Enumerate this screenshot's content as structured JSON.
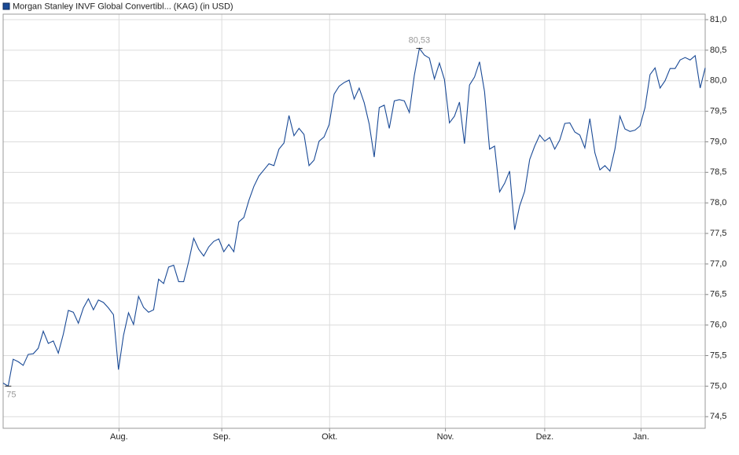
{
  "chart_data": {
    "type": "line",
    "series": [
      {
        "name": "Morgan Stanley INVF Global Convertibl... (KAG) (in USD)",
        "color": "#1a4a96",
        "values": [
          75.05,
          75.0,
          75.44,
          75.4,
          75.34,
          75.52,
          75.53,
          75.62,
          75.9,
          75.7,
          75.74,
          75.54,
          75.85,
          76.24,
          76.21,
          76.03,
          76.28,
          76.43,
          76.25,
          76.41,
          76.37,
          76.28,
          76.17,
          75.27,
          75.83,
          76.2,
          76.01,
          76.47,
          76.29,
          76.21,
          76.25,
          76.75,
          76.68,
          76.95,
          76.98,
          76.71,
          76.71,
          77.04,
          77.42,
          77.24,
          77.13,
          77.28,
          77.37,
          77.41,
          77.2,
          77.32,
          77.2,
          77.69,
          77.76,
          78.04,
          78.27,
          78.44,
          78.54,
          78.64,
          78.61,
          78.88,
          78.98,
          79.43,
          79.1,
          79.22,
          79.12,
          78.61,
          78.7,
          79.01,
          79.08,
          79.28,
          79.78,
          79.91,
          79.97,
          80.01,
          79.7,
          79.88,
          79.64,
          79.29,
          78.75,
          79.56,
          79.6,
          79.22,
          79.67,
          79.69,
          79.67,
          79.48,
          80.09,
          80.53,
          80.42,
          80.37,
          80.03,
          80.29,
          80.02,
          79.31,
          79.42,
          79.65,
          78.97,
          79.93,
          80.06,
          80.31,
          79.82,
          78.88,
          78.93,
          78.18,
          78.32,
          78.52,
          77.56,
          77.95,
          78.19,
          78.71,
          78.93,
          79.11,
          79.01,
          79.07,
          78.88,
          79.03,
          79.3,
          79.31,
          79.16,
          79.11,
          78.9,
          79.38,
          78.82,
          78.54,
          78.61,
          78.52,
          78.88,
          79.42,
          79.21,
          79.17,
          79.19,
          79.26,
          79.56,
          80.1,
          80.21,
          79.88,
          80.0,
          80.2,
          80.2,
          80.34,
          80.38,
          80.34,
          80.41,
          79.88,
          80.21
        ],
        "value_labels": [
          null,
          "75",
          null,
          null,
          null,
          null,
          null,
          null,
          null,
          null,
          null,
          null,
          null,
          null,
          null,
          null,
          null,
          null,
          null,
          null,
          null,
          null,
          null,
          null,
          null,
          null,
          null,
          null,
          null,
          null,
          null,
          null,
          null,
          null,
          null,
          null,
          null,
          null,
          null,
          null,
          null,
          null,
          null,
          null,
          null,
          null,
          null,
          null,
          null,
          null,
          null,
          null,
          null,
          null,
          null,
          null,
          null,
          null,
          null,
          null,
          null,
          null,
          null,
          null,
          null,
          null,
          null,
          null,
          null,
          null,
          null,
          null,
          null,
          null,
          null,
          null,
          null,
          null,
          null,
          null,
          null,
          null,
          null,
          "80,53",
          null,
          null,
          null,
          null,
          null,
          null,
          null,
          null,
          null,
          null,
          null,
          null,
          null,
          null,
          null,
          null,
          null,
          null,
          null,
          null,
          null,
          null,
          null,
          null,
          null,
          null,
          null,
          null,
          null,
          null,
          null,
          null,
          null,
          null,
          null,
          null,
          null,
          null,
          null,
          null,
          null,
          null,
          null,
          null,
          null,
          null,
          null,
          null,
          null,
          null,
          null,
          null,
          null,
          null,
          null,
          null,
          null
        ]
      }
    ],
    "xlim": [
      0,
      140
    ],
    "xticks": [
      {
        "value": 23.1,
        "label": "Aug."
      },
      {
        "value": 43.6,
        "label": "Sep."
      },
      {
        "value": 65.1,
        "label": "Okt."
      },
      {
        "value": 88.2,
        "label": "Nov."
      },
      {
        "value": 108.0,
        "label": "Dez."
      },
      {
        "value": 127.2,
        "label": "Jan."
      }
    ],
    "ylim": [
      74.31,
      81.09
    ],
    "yticks": [
      {
        "value": 74.5,
        "label": "74,5"
      },
      {
        "value": 75,
        "label": "75,0"
      },
      {
        "value": 75.5,
        "label": "75,5"
      },
      {
        "value": 76,
        "label": "76,0"
      },
      {
        "value": 76.5,
        "label": "76,5"
      },
      {
        "value": 77,
        "label": "77,0"
      },
      {
        "value": 77.5,
        "label": "77,5"
      },
      {
        "value": 78,
        "label": "78,0"
      },
      {
        "value": 78.5,
        "label": "78,5"
      },
      {
        "value": 79,
        "label": "79,0"
      },
      {
        "value": 79.5,
        "label": "79,5"
      },
      {
        "value": 80,
        "label": "80,0"
      },
      {
        "value": 80.5,
        "label": "80,5"
      },
      {
        "value": 81,
        "label": "81,0"
      }
    ],
    "grid": true
  }
}
